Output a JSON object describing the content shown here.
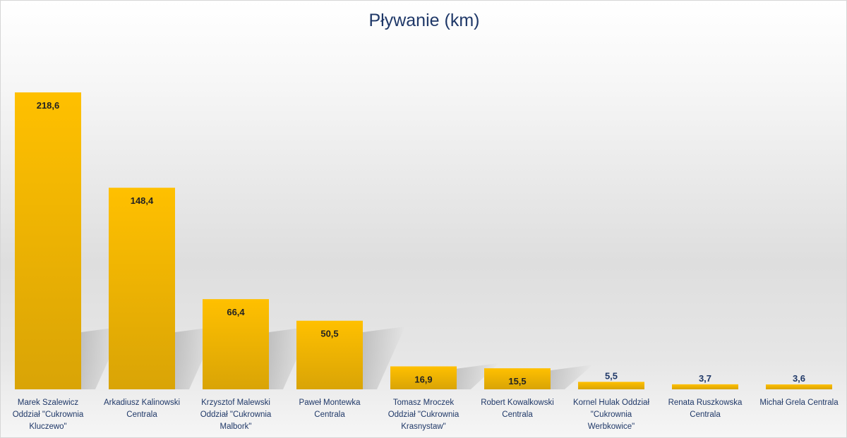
{
  "chart_data": {
    "type": "bar",
    "title": "Pływanie (km)",
    "xlabel": "",
    "ylabel": "",
    "ylim": [
      0,
      218.6
    ],
    "grid": false,
    "legend": "none",
    "categories": [
      [
        "Marek Szalewicz",
        "Oddział \"Cukrownia",
        "Kluczewo\""
      ],
      [
        "Arkadiusz Kalinowski",
        "Centrala"
      ],
      [
        "Krzysztof Malewski",
        "Oddział \"Cukrownia",
        "Malbork\""
      ],
      [
        "Paweł Montewka",
        "Centrala"
      ],
      [
        "Tomasz Mroczek",
        "Oddział \"Cukrownia",
        "Krasnystaw\""
      ],
      [
        "Robert Kowalkowski",
        "Centrala"
      ],
      [
        "Kornel Hulak Oddział",
        "\"Cukrownia",
        "Werbkowice\""
      ],
      [
        "Renata Ruszkowska",
        "Centrala"
      ],
      [
        "Michał Grela Centrala"
      ]
    ],
    "values": [
      218.6,
      148.4,
      66.4,
      50.5,
      16.9,
      15.5,
      5.5,
      3.7,
      3.6
    ],
    "value_labels": [
      "218,6",
      "148,4",
      "66,4",
      "50,5",
      "16,9",
      "15,5",
      "5,5",
      "3,7",
      "3,6"
    ],
    "colors": {
      "bar_top": "#ffc000",
      "bar_bottom": "#d9a406",
      "title": "#1f3868",
      "labels": "#1f3868"
    }
  }
}
